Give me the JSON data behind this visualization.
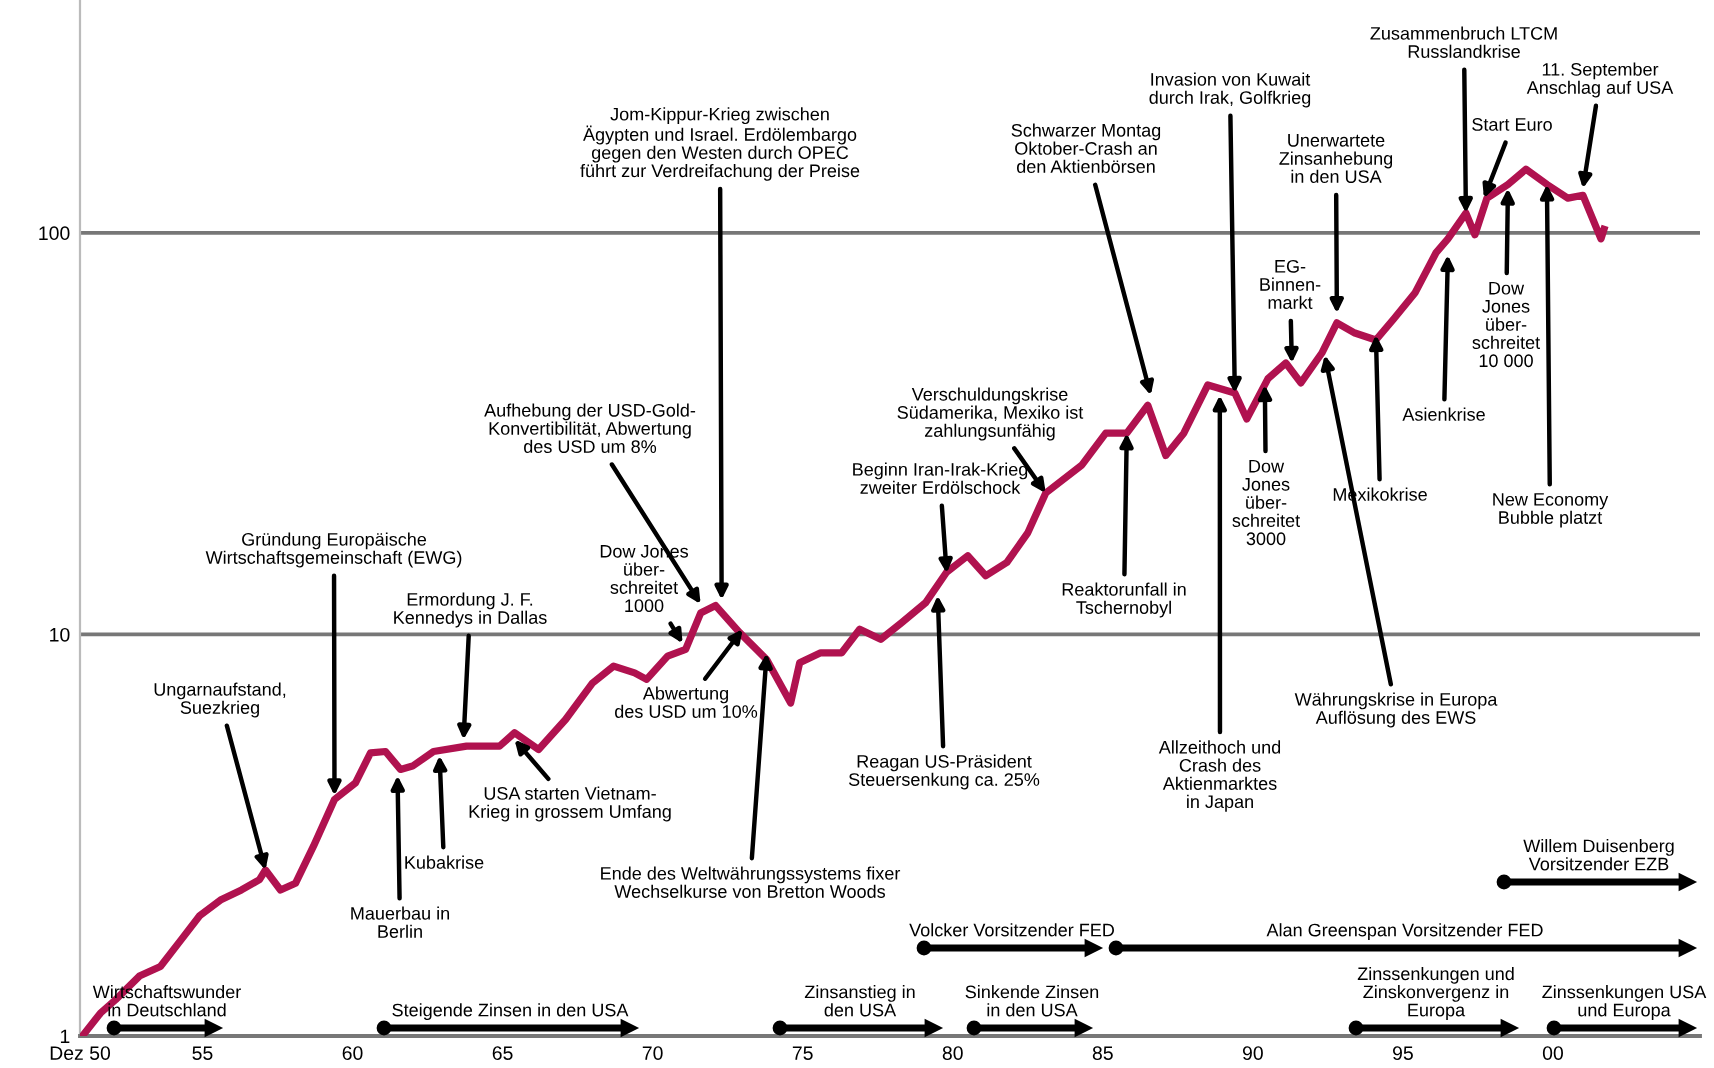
{
  "chart_data": {
    "type": "line",
    "log": "y",
    "grid": "y",
    "xlim": [
      1950.92,
      2004.9
    ],
    "ylim": [
      1,
      380
    ],
    "xticks": [
      {
        "value": 1950.92,
        "label": "Dez 50"
      },
      {
        "value": 1955,
        "label": "55"
      },
      {
        "value": 1960,
        "label": "60"
      },
      {
        "value": 1965,
        "label": "65"
      },
      {
        "value": 1970,
        "label": "70"
      },
      {
        "value": 1975,
        "label": "75"
      },
      {
        "value": 1980,
        "label": "80"
      },
      {
        "value": 1985,
        "label": "85"
      },
      {
        "value": 1990,
        "label": "90"
      },
      {
        "value": 1995,
        "label": "95"
      },
      {
        "value": 2000,
        "label": "00"
      }
    ],
    "yticks": [
      1,
      10,
      100
    ],
    "series": [
      {
        "color": "#b0124f",
        "x": [
          1951.0,
          1951.6,
          1952.1,
          1952.9,
          1953.6,
          1954.3,
          1954.9,
          1955.6,
          1956.3,
          1956.9,
          1957.1,
          1957.6,
          1958.1,
          1958.7,
          1959.4,
          1960.1,
          1960.6,
          1961.1,
          1961.6,
          1962.0,
          1962.7,
          1963.8,
          1964.9,
          1965.4,
          1966.2,
          1967.1,
          1968.0,
          1968.7,
          1969.4,
          1969.8,
          1970.5,
          1971.1,
          1971.6,
          1972.1,
          1972.9,
          1973.8,
          1974.6,
          1974.9,
          1975.6,
          1976.3,
          1976.9,
          1977.6,
          1978.3,
          1979.1,
          1979.8,
          1980.5,
          1981.1,
          1981.8,
          1982.5,
          1983.1,
          1984.3,
          1985.1,
          1985.8,
          1986.5,
          1987.1,
          1987.7,
          1988.5,
          1989.4,
          1989.8,
          1990.5,
          1991.1,
          1991.6,
          1992.3,
          1992.8,
          1993.4,
          1994.1,
          1994.7,
          1995.4,
          1996.1,
          1996.5,
          1997.1,
          1997.4,
          1997.8,
          1998.5,
          1999.1,
          1999.8,
          2000.5,
          2001.0,
          2001.6,
          2001.7
        ],
        "values": [
          1.0,
          1.14,
          1.23,
          1.41,
          1.49,
          1.74,
          1.99,
          2.18,
          2.31,
          2.45,
          2.59,
          2.31,
          2.4,
          2.97,
          3.88,
          4.27,
          5.07,
          5.11,
          4.61,
          4.7,
          5.11,
          5.27,
          5.27,
          5.69,
          5.17,
          6.14,
          7.57,
          8.34,
          8.02,
          7.73,
          8.83,
          9.18,
          11.3,
          11.8,
          10.1,
          8.66,
          6.75,
          8.5,
          9.0,
          9.0,
          10.3,
          9.72,
          10.7,
          12.0,
          14.3,
          15.7,
          14.0,
          15.1,
          17.9,
          22.5,
          26.4,
          31.7,
          31.7,
          37.2,
          27.9,
          31.7,
          41.8,
          39.9,
          34.4,
          43.3,
          47.4,
          42.3,
          50.2,
          59.7,
          56.3,
          54.1,
          61.1,
          70.8,
          89.1,
          96.6,
          112,
          98.9,
          122,
          132,
          144,
          132,
          122,
          124,
          96.6,
          102
        ]
      }
    ],
    "annotations": [
      {
        "text": "Ungarnaufstand,\nSuezkrieg",
        "x": 1957.1,
        "y": 2.59
      },
      {
        "text": "Gründung Europäische\nWirtschaftsgemeinschaft (EWG)",
        "x": 1959.4,
        "y": 3.97
      },
      {
        "text": "Ermordung J. F.\nKennedys in Dallas",
        "x": 1963.7,
        "y": 5.47
      },
      {
        "text": "Mauerbau in\nBerlin",
        "x": 1961.5,
        "y": 4.45
      },
      {
        "text": "Kubakrise",
        "x": 1962.9,
        "y": 4.99
      },
      {
        "text": "USA starten Vietnam-\nKrieg in grossem Umfang",
        "x": 1965.4,
        "y": 5.47
      },
      {
        "text": "Dow Jones\nüber-\nschreitet\n1000",
        "x": 1971.0,
        "y": 9.5
      },
      {
        "text": "Aufhebung der USD-Gold-\nKonvertibilität, Abwertung\ndes USD um 8%",
        "x": 1971.6,
        "y": 11.9
      },
      {
        "text": "Jom-Kippur-Krieg zwischen\nÄgypten und Israel. Erdölembargo\ngegen den Westen durch OPEC\nführt zur Verdreifachung der Preise",
        "x": 1972.3,
        "y": 12.2
      },
      {
        "text": "Abwertung\ndes USD um 10%",
        "x": 1973.0,
        "y": 10.3
      },
      {
        "text": "Ende des Weltwährungssystems fixer\nWechselkurse von Bretton Woods",
        "x": 1973.8,
        "y": 8.97
      },
      {
        "text": "Beginn Iran-Irak-Krieg\nzweiter Erdölschock",
        "x": 1979.8,
        "y": 14.2
      },
      {
        "text": "Reagan US-Präsident\nSteuersenkung ca. 25%",
        "x": 1979.5,
        "y": 12.5
      },
      {
        "text": "Verschuldungskrise\nSüdamerika, Mexiko ist\nzahlungsunfähig",
        "x": 1983.1,
        "y": 22.5
      },
      {
        "text": "Reaktorunfall in\nTschernobyl",
        "x": 1985.8,
        "y": 31.7
      },
      {
        "text": "Schwarzer Montag\nOktober-Crash an\nden Aktienbörsen",
        "x": 1986.6,
        "y": 39.4
      },
      {
        "text": "Invasion von Kuwait\ndurch Irak, Golfkrieg",
        "x": 1989.4,
        "y": 39.9
      },
      {
        "text": "Allzeithoch und\nCrash des\nAktienmarktes\nin Japan",
        "x": 1988.9,
        "y": 39.4
      },
      {
        "text": "Dow\nJones\nüber-\nschreitet\n3000",
        "x": 1990.4,
        "y": 41.8
      },
      {
        "text": "EG-\nBinnen-\nmarkt",
        "x": 1991.3,
        "y": 47.4
      },
      {
        "text": "Unerwartete\nZinsanhebung\nin den USA",
        "x": 1992.8,
        "y": 63.1
      },
      {
        "text": "Währungskrise in Europa\nAuflösung des EWS",
        "x": 1992.4,
        "y": 49.6
      },
      {
        "text": "Mexikokrise",
        "x": 1994.1,
        "y": 55.7
      },
      {
        "text": "Asienkrise",
        "x": 1996.5,
        "y": 88.1
      },
      {
        "text": "Zusammenbruch LTCM\nRusslandkrise",
        "x": 1997.1,
        "y": 112
      },
      {
        "text": "Start Euro",
        "x": 1997.7,
        "y": 122
      },
      {
        "text": "Dow\nJones\nüber-\nschreitet\n10 000",
        "x": 1998.5,
        "y": 129
      },
      {
        "text": "11. September\nAnschlag auf USA",
        "x": 2001.0,
        "y": 129
      },
      {
        "text": "New Economy\nBubble platzt",
        "x": 1999.8,
        "y": 132
      },
      "Wirtschaftswunder\nin Deutschland",
      "Steigende Zinsen in den USA",
      "Zinsanstieg in\nden USA",
      "Sinkende Zinsen\nin den USA",
      "Volcker Vorsitzender FED",
      "Alan Greenspan Vorsitzender FED",
      "Zinssenkungen und\nZinskonvergenz in\nEuropa",
      "Zinssenkungen USA\nund Europa",
      "Willem Duisenberg\nVorsitzender EZB"
    ]
  }
}
